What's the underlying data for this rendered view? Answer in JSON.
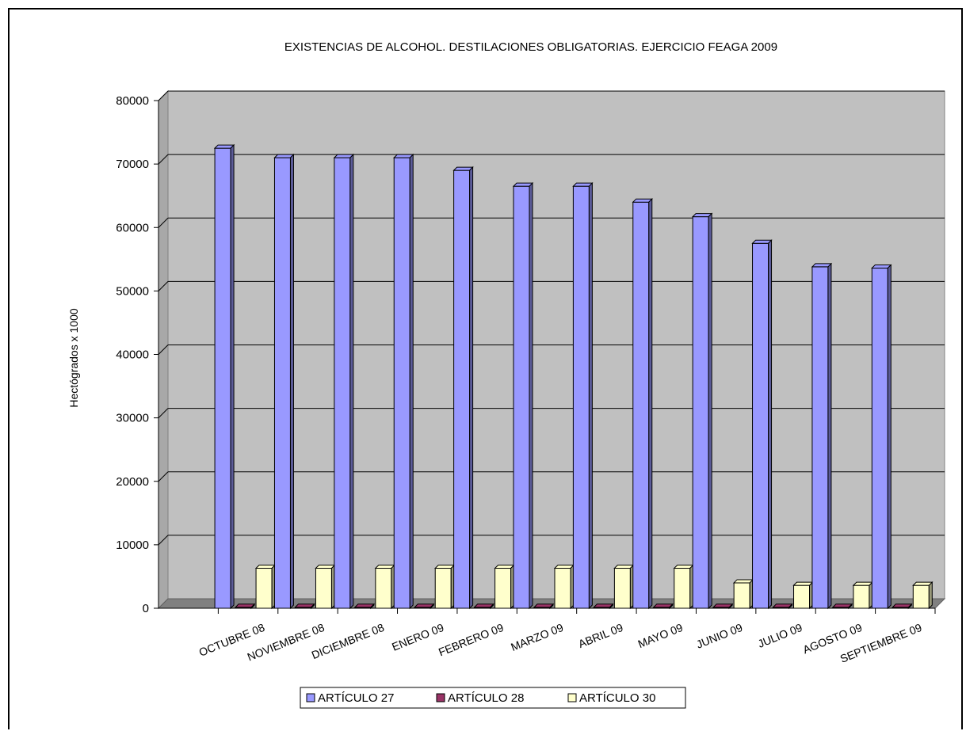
{
  "chart_data": {
    "type": "bar",
    "title": "EXISTENCIAS DE ALCOHOL. DESTILACIONES OBLIGATORIAS. EJERCICIO FEAGA 2009",
    "xlabel": "",
    "ylabel": "Hectógrados x 1000",
    "ylim": [
      0,
      80000
    ],
    "yticks": [
      "0",
      "10000",
      "20000",
      "30000",
      "40000",
      "50000",
      "60000",
      "70000",
      "80000"
    ],
    "grid": true,
    "legend_position": "bottom",
    "categories": [
      "OCTUBRE 08",
      "NOVIEMBRE 08",
      "DICIEMBRE 08",
      "ENERO 09",
      "FEBRERO 09",
      "MARZO 09",
      "ABRIL 09",
      "MAYO 09",
      "JUNIO 09",
      "JULIO 09",
      "AGOSTO 09",
      "SEPTIEMBRE 09"
    ],
    "series": [
      {
        "name": "ARTÍCULO 27",
        "color": "#9999ff",
        "values": [
          72500,
          71000,
          71000,
          71000,
          69000,
          66500,
          66500,
          64000,
          61700,
          57500,
          53800,
          53600
        ]
      },
      {
        "name": "ARTÍCULO 28",
        "color": "#993366",
        "values": [
          150,
          150,
          150,
          150,
          150,
          150,
          150,
          150,
          150,
          150,
          150,
          150
        ]
      },
      {
        "name": "ARTÍCULO 30",
        "color": "#ffffcc",
        "values": [
          6300,
          6300,
          6300,
          6300,
          6300,
          6300,
          6300,
          6300,
          4000,
          3600,
          3600,
          3600
        ]
      }
    ],
    "colors": {
      "plot_wall": "#c0c0c0",
      "floor": "#808080",
      "grid": "#000000"
    }
  }
}
